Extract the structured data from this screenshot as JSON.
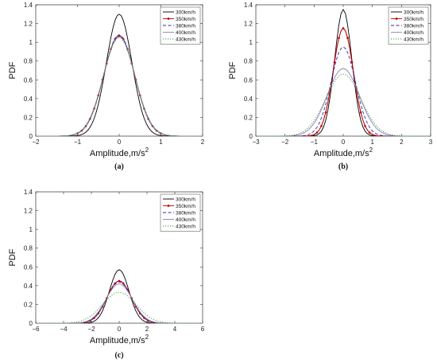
{
  "chart_data": [
    {
      "type": "line",
      "panel_label": "(a)",
      "xlabel": "Amplitude,m/s",
      "xlabel_sup": "2",
      "ylabel": "PDF",
      "xlim": [
        -2,
        2
      ],
      "ylim": [
        0,
        1.4
      ],
      "xticks": [
        "-2",
        "-1",
        "0",
        "1",
        "2"
      ],
      "yticks": [
        "0",
        "0.2",
        "0.4",
        "0.6",
        "0.8",
        "1",
        "1.2",
        "1.4"
      ],
      "legend": "top-right",
      "series": [
        {
          "name": "300km/h",
          "color": "#000000",
          "style": "solid",
          "marker": "none",
          "peak": 1.3,
          "sigma": 0.305,
          "xrange": [
            -1.2,
            1.2
          ]
        },
        {
          "name": "350km/h",
          "color": "#c00000",
          "style": "solid",
          "marker": "dot",
          "peak": 1.07,
          "sigma": 0.373,
          "xrange": [
            -1.4,
            1.4
          ]
        },
        {
          "name": "380km/h",
          "color": "#2a2ab0",
          "style": "dashed",
          "marker": "none",
          "peak": 1.08,
          "sigma": 0.37,
          "xrange": [
            -1.4,
            1.4
          ]
        },
        {
          "name": "400km/h",
          "color": "#8c7fb8",
          "style": "solid",
          "marker": "none",
          "peak": 1.06,
          "sigma": 0.377,
          "xrange": [
            -1.45,
            1.45
          ]
        },
        {
          "name": "430km/h",
          "color": "#2e9b2e",
          "style": "dotted",
          "marker": "none",
          "peak": 1.05,
          "sigma": 0.38,
          "xrange": [
            -1.8,
            1.8
          ]
        }
      ]
    },
    {
      "type": "line",
      "panel_label": "(b)",
      "xlabel": "Amplitude,m/s",
      "xlabel_sup": "2",
      "ylabel": "PDF",
      "xlim": [
        -3,
        3
      ],
      "ylim": [
        0,
        1.4
      ],
      "xticks": [
        "-3",
        "-2",
        "-1",
        "0",
        "1",
        "2",
        "3"
      ],
      "yticks": [
        "0",
        "0.2",
        "0.4",
        "0.6",
        "0.8",
        "1",
        "1.2",
        "1.4"
      ],
      "legend": "top-right",
      "series": [
        {
          "name": "300km/h",
          "color": "#000000",
          "style": "solid",
          "marker": "none",
          "peak": 1.35,
          "sigma": 0.295,
          "xrange": [
            -1.4,
            1.4
          ]
        },
        {
          "name": "350km/h",
          "color": "#c00000",
          "style": "solid",
          "marker": "dot",
          "peak": 1.15,
          "sigma": 0.345,
          "xrange": [
            -1.6,
            1.6
          ]
        },
        {
          "name": "380km/h",
          "color": "#2a2ab0",
          "style": "dashed",
          "marker": "none",
          "peak": 0.95,
          "sigma": 0.42,
          "xrange": [
            -1.9,
            1.9
          ]
        },
        {
          "name": "400km/h",
          "color": "#8c7fb8",
          "style": "solid",
          "marker": "none",
          "peak": 0.72,
          "sigma": 0.55,
          "xrange": [
            -2.3,
            2.3
          ]
        },
        {
          "name": "430km/h",
          "color": "#2e9b2e",
          "style": "dotted",
          "marker": "none",
          "peak": 0.66,
          "sigma": 0.6,
          "xrange": [
            -2.6,
            2.6
          ]
        }
      ]
    },
    {
      "type": "line",
      "panel_label": "(c)",
      "xlabel": "Amplitude,m/s",
      "xlabel_sup": "2",
      "ylabel": "PDF",
      "xlim": [
        -6,
        6
      ],
      "ylim": [
        0,
        1.4
      ],
      "xticks": [
        "-6",
        "-4",
        "-2",
        "0",
        "2",
        "4",
        "6"
      ],
      "yticks": [
        "0",
        "0.2",
        "0.4",
        "0.6",
        "0.8",
        "1",
        "1.2",
        "1.4"
      ],
      "legend": "top-right",
      "series": [
        {
          "name": "300km/h",
          "color": "#000000",
          "style": "solid",
          "marker": "none",
          "peak": 0.57,
          "sigma": 0.7,
          "xrange": [
            -5.5,
            5.5
          ]
        },
        {
          "name": "350km/h",
          "color": "#c00000",
          "style": "solid",
          "marker": "dot",
          "peak": 0.45,
          "sigma": 0.88,
          "xrange": [
            -3.6,
            3.6
          ]
        },
        {
          "name": "380km/h",
          "color": "#2a2ab0",
          "style": "dashed",
          "marker": "none",
          "peak": 0.44,
          "sigma": 0.9,
          "xrange": [
            -3.8,
            3.8
          ]
        },
        {
          "name": "400km/h",
          "color": "#8c7fb8",
          "style": "solid",
          "marker": "none",
          "peak": 0.42,
          "sigma": 0.95,
          "xrange": [
            -4,
            4
          ]
        },
        {
          "name": "430km/h",
          "color": "#2e9b2e",
          "style": "dotted",
          "marker": "none",
          "peak": 0.33,
          "sigma": 1.2,
          "xrange": [
            -5,
            5
          ]
        }
      ]
    }
  ]
}
